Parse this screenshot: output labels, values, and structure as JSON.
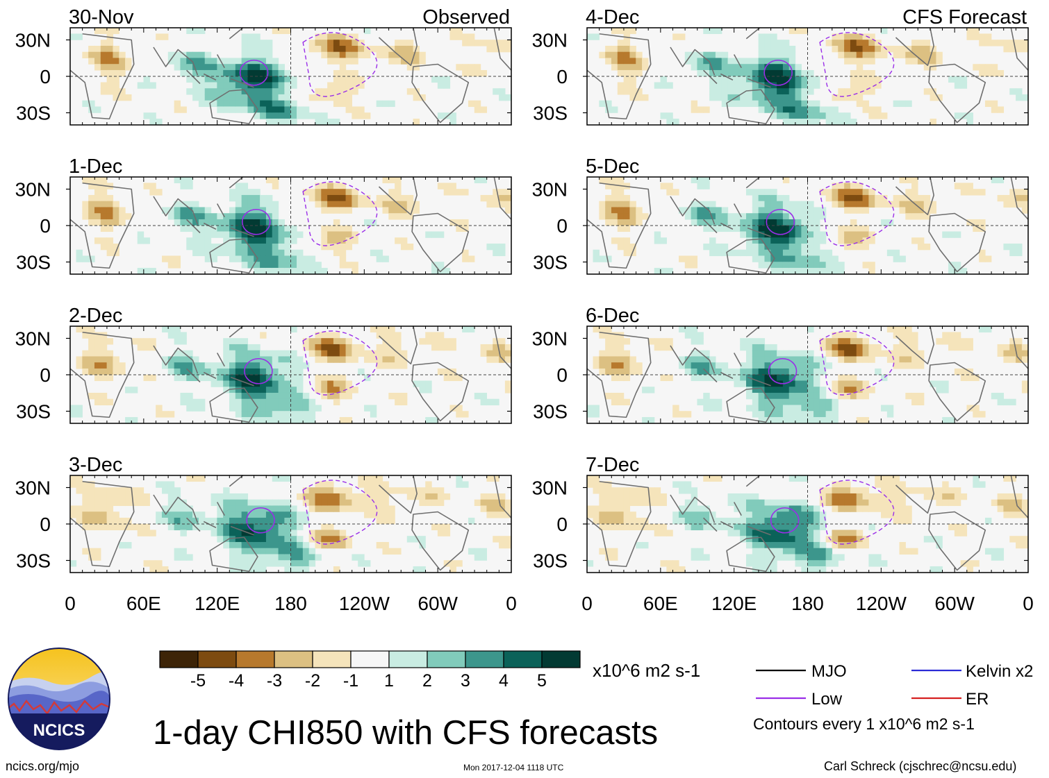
{
  "chart_data": {
    "type": "heatmap",
    "title": "1-day CHI850 with CFS forecasts",
    "variable": "CHI850",
    "units": "x10^6 m2 s-1",
    "columns": [
      {
        "name": "Observed",
        "panels": [
          "30-Nov",
          "1-Dec",
          "2-Dec",
          "3-Dec"
        ]
      },
      {
        "name": "CFS Forecast",
        "panels": [
          "4-Dec",
          "5-Dec",
          "6-Dec",
          "7-Dec"
        ]
      }
    ],
    "x_ticks": [
      "0",
      "60E",
      "120E",
      "180",
      "120W",
      "60W",
      "0"
    ],
    "y_ticks": [
      "30N",
      "0",
      "30S"
    ],
    "xlim": [
      0,
      360
    ],
    "ylim": [
      -40,
      40
    ],
    "colorbar": {
      "levels": [
        "-5",
        "-4",
        "-3",
        "-2",
        "-1",
        "1",
        "2",
        "3",
        "4",
        "5"
      ],
      "colors": [
        "#3d2407",
        "#7d4b10",
        "#b7792d",
        "#dcc082",
        "#f5e4bb",
        "#f6f6f6",
        "#c9ece2",
        "#81cbbb",
        "#3c968c",
        "#0b6259",
        "#023a33"
      ]
    },
    "legend": [
      {
        "label": "MJO",
        "color": "#000000",
        "style": "solid"
      },
      {
        "label": "Kelvin x2",
        "color": "#2b2bd6",
        "style": "solid"
      },
      {
        "label": "Low",
        "color": "#9a2ee8",
        "style": "solid"
      },
      {
        "label": "ER",
        "color": "#d62020",
        "style": "solid"
      }
    ],
    "contour_note": "Contours every 1 x10^6 m2 s-1"
  },
  "logo": {
    "text": "NCICS"
  },
  "footer": {
    "website": "ncics.org/mjo",
    "timestamp": "Mon 2017-12-04 1118 UTC",
    "author": "Carl Schreck (cjschrec@ncsu.edu)"
  }
}
